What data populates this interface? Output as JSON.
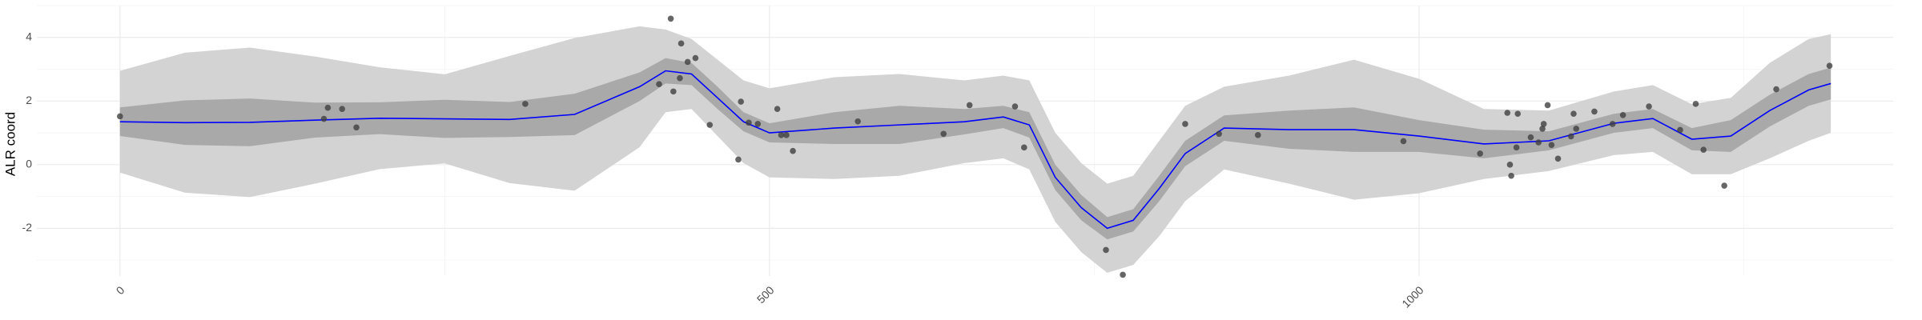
{
  "chart_data": {
    "type": "gp",
    "y_label": "ALR coord",
    "xlim": [
      -64,
      1365
    ],
    "ylim": [
      -3.5,
      5
    ],
    "xticks": [
      0,
      500,
      1000
    ],
    "yticks": [
      -2,
      0,
      2,
      4
    ],
    "grid": true,
    "x": [
      0,
      50,
      100,
      150,
      200,
      250,
      300,
      350,
      400,
      420,
      440,
      460,
      480,
      500,
      550,
      600,
      650,
      680,
      700,
      720,
      740,
      760,
      780,
      800,
      820,
      850,
      900,
      950,
      1000,
      1050,
      1100,
      1150,
      1180,
      1210,
      1240,
      1270,
      1300,
      1317
    ],
    "bands": [
      {
        "color": "#d3d3d3",
        "lower": [
          -0.25,
          -0.88,
          -1.02,
          -0.6,
          -0.14,
          0.04,
          -0.58,
          -0.82,
          0.55,
          1.65,
          1.75,
          0.9,
          0.05,
          -0.4,
          -0.45,
          -0.35,
          0.05,
          0.2,
          -0.15,
          -1.8,
          -2.75,
          -3.4,
          -3.15,
          -2.25,
          -1.15,
          -0.15,
          -0.6,
          -1.1,
          -0.9,
          -0.45,
          -0.2,
          0.3,
          0.4,
          -0.3,
          -0.3,
          0.2,
          0.75,
          1.0
        ],
        "upper": [
          2.95,
          3.52,
          3.68,
          3.4,
          3.06,
          2.84,
          3.42,
          3.98,
          4.35,
          4.25,
          3.95,
          3.3,
          2.65,
          2.4,
          2.75,
          2.85,
          2.65,
          2.8,
          2.65,
          1.0,
          0.05,
          -0.6,
          -0.35,
          0.75,
          1.85,
          2.45,
          2.8,
          3.3,
          2.7,
          1.75,
          1.7,
          2.3,
          2.5,
          1.9,
          2.1,
          3.2,
          3.95,
          4.1
        ]
      },
      {
        "color": "#a9a9a9",
        "lower": [
          0.9,
          0.62,
          0.58,
          0.85,
          0.96,
          0.84,
          0.87,
          0.93,
          2.0,
          2.55,
          2.5,
          1.75,
          1.05,
          0.7,
          0.65,
          0.65,
          0.95,
          1.15,
          0.85,
          -0.8,
          -1.75,
          -2.35,
          -2.1,
          -1.15,
          -0.05,
          0.75,
          0.5,
          0.4,
          0.4,
          0.2,
          0.45,
          1.0,
          1.15,
          0.45,
          0.4,
          1.2,
          1.85,
          2.05
        ],
        "upper": [
          1.8,
          2.02,
          2.08,
          1.95,
          1.96,
          2.04,
          1.97,
          2.23,
          2.9,
          3.35,
          3.2,
          2.45,
          1.65,
          1.3,
          1.65,
          1.85,
          1.75,
          1.85,
          1.65,
          0.0,
          -0.95,
          -1.65,
          -1.4,
          -0.35,
          0.75,
          1.55,
          1.7,
          1.8,
          1.4,
          1.1,
          1.05,
          1.6,
          1.75,
          1.15,
          1.4,
          2.2,
          2.85,
          3.05
        ]
      }
    ],
    "mean": {
      "color": "#0000ff",
      "values": [
        1.35,
        1.32,
        1.33,
        1.4,
        1.46,
        1.44,
        1.42,
        1.58,
        2.45,
        2.95,
        2.85,
        2.1,
        1.35,
        1.0,
        1.15,
        1.25,
        1.35,
        1.5,
        1.25,
        -0.4,
        -1.35,
        -2.0,
        -1.75,
        -0.75,
        0.35,
        1.15,
        1.1,
        1.1,
        0.9,
        0.65,
        0.75,
        1.3,
        1.45,
        0.8,
        0.9,
        1.7,
        2.35,
        2.55
      ]
    },
    "points": {
      "color": "#404040",
      "x": [
        0,
        157,
        160,
        171,
        182,
        312,
        415,
        424,
        426,
        431,
        432,
        437,
        443,
        454,
        476,
        478,
        484,
        491,
        506,
        509,
        513,
        518,
        568,
        634,
        654,
        689,
        696,
        759,
        772,
        820,
        846,
        876,
        988,
        1047,
        1068,
        1070,
        1071,
        1075,
        1076,
        1086,
        1092,
        1095,
        1096,
        1099,
        1102,
        1107,
        1117,
        1119,
        1121,
        1135,
        1149,
        1157,
        1177,
        1201,
        1213,
        1219,
        1235,
        1275,
        1316
      ],
      "values": [
        1.52,
        1.44,
        1.79,
        1.75,
        1.17,
        1.91,
        2.53,
        4.59,
        2.3,
        2.72,
        3.81,
        3.23,
        3.35,
        1.25,
        0.16,
        1.98,
        1.32,
        1.28,
        1.75,
        0.93,
        0.93,
        0.43,
        1.36,
        0.97,
        1.87,
        1.83,
        0.54,
        -2.68,
        -3.46,
        1.28,
        0.97,
        0.93,
        0.74,
        0.35,
        1.63,
        0.0,
        -0.35,
        0.54,
        1.6,
        0.86,
        0.7,
        1.13,
        1.28,
        1.87,
        0.62,
        0.19,
        0.89,
        1.6,
        1.13,
        1.67,
        1.28,
        1.56,
        1.83,
        1.09,
        1.91,
        0.47,
        -0.66,
        2.37,
        3.11
      ]
    }
  }
}
